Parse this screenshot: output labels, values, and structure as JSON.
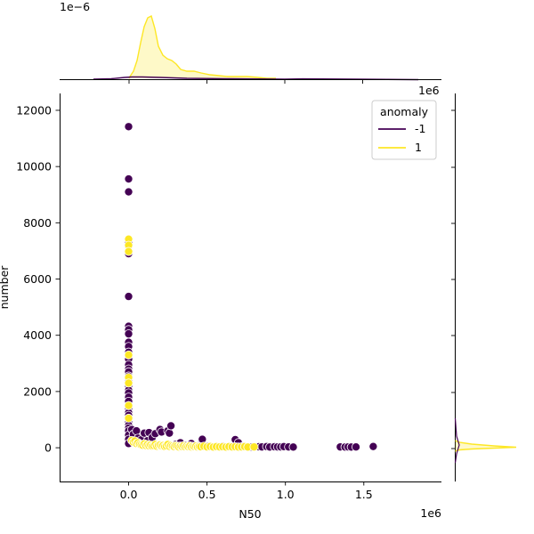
{
  "chart_data": {
    "type": "scatter",
    "title": "",
    "xlabel": "N50",
    "ylabel": "number",
    "x_offset_label": "1e6",
    "y_offset_label_top_marginal": "1e−6",
    "x_offset_label_top_right": "1e6",
    "xlim": [
      -0.44,
      1.995
    ],
    "ylim": [
      -1200,
      12600
    ],
    "x_scale_note": "x values in units of 1e6",
    "xticks": [
      0.0,
      0.5,
      1.0,
      1.5
    ],
    "xtick_labels": [
      "0.0",
      "0.5",
      "1.0",
      "1.5"
    ],
    "yticks": [
      0,
      2000,
      4000,
      6000,
      8000,
      10000,
      12000
    ],
    "ytick_labels": [
      "0",
      "2000",
      "4000",
      "6000",
      "8000",
      "10000",
      "12000"
    ],
    "legend": {
      "title": "anomaly",
      "placement": "top-right",
      "entries": [
        {
          "label": "-1",
          "color": "#440154"
        },
        {
          "label": "1",
          "color": "#fde725"
        }
      ]
    },
    "series": [
      {
        "name": "-1",
        "color": "#440154",
        "points": [
          [
            0.0,
            11420
          ],
          [
            0.0,
            9560
          ],
          [
            0.0,
            9100
          ],
          [
            0.0,
            7400
          ],
          [
            0.0,
            7300
          ],
          [
            0.0,
            7150
          ],
          [
            0.0,
            7000
          ],
          [
            0.0,
            6900
          ],
          [
            0.0,
            5380
          ],
          [
            0.0,
            4320
          ],
          [
            0.0,
            4200
          ],
          [
            0.0,
            4050
          ],
          [
            0.0,
            3750
          ],
          [
            0.0,
            3600
          ],
          [
            0.0,
            3400
          ],
          [
            0.0,
            3150
          ],
          [
            0.0,
            2950
          ],
          [
            0.0,
            2800
          ],
          [
            0.0,
            2700
          ],
          [
            0.0,
            2550
          ],
          [
            0.0,
            2400
          ],
          [
            0.0,
            2200
          ],
          [
            0.0,
            2050
          ],
          [
            0.0,
            1950
          ],
          [
            0.0,
            1800
          ],
          [
            0.0,
            1650
          ],
          [
            0.0,
            1500
          ],
          [
            0.0,
            1400
          ],
          [
            0.0,
            1250
          ],
          [
            0.0,
            1150
          ],
          [
            0.0,
            1000
          ],
          [
            0.0,
            900
          ],
          [
            0.0,
            800
          ],
          [
            0.0,
            700
          ],
          [
            0.0,
            600
          ],
          [
            0.0,
            450
          ],
          [
            0.0,
            300
          ],
          [
            0.0,
            150
          ],
          [
            0.02,
            650
          ],
          [
            0.03,
            480
          ],
          [
            0.05,
            600
          ],
          [
            0.06,
            340
          ],
          [
            0.08,
            280
          ],
          [
            0.1,
            520
          ],
          [
            0.12,
            250
          ],
          [
            0.13,
            540
          ],
          [
            0.15,
            360
          ],
          [
            0.17,
            500
          ],
          [
            0.2,
            650
          ],
          [
            0.21,
            560
          ],
          [
            0.25,
            600
          ],
          [
            0.26,
            520
          ],
          [
            0.27,
            780
          ],
          [
            0.3,
            120
          ],
          [
            0.33,
            180
          ],
          [
            0.36,
            90
          ],
          [
            0.4,
            150
          ],
          [
            0.45,
            80
          ],
          [
            0.47,
            300
          ],
          [
            0.5,
            60
          ],
          [
            0.55,
            40
          ],
          [
            0.6,
            55
          ],
          [
            0.65,
            45
          ],
          [
            0.68,
            290
          ],
          [
            0.7,
            180
          ],
          [
            0.73,
            50
          ],
          [
            0.78,
            30
          ],
          [
            0.83,
            35
          ],
          [
            0.85,
            30
          ],
          [
            0.88,
            40
          ],
          [
            0.9,
            25
          ],
          [
            0.93,
            35
          ],
          [
            0.95,
            30
          ],
          [
            0.97,
            28
          ],
          [
            0.99,
            40
          ],
          [
            1.02,
            30
          ],
          [
            1.05,
            25
          ],
          [
            1.35,
            30
          ],
          [
            1.38,
            25
          ],
          [
            1.4,
            30
          ],
          [
            1.42,
            25
          ],
          [
            1.45,
            28
          ],
          [
            1.56,
            45
          ]
        ]
      },
      {
        "name": "1",
        "color": "#fde725",
        "points": [
          [
            0.0,
            7420
          ],
          [
            0.0,
            7200
          ],
          [
            0.0,
            6980
          ],
          [
            0.0,
            3300
          ],
          [
            0.0,
            2500
          ],
          [
            0.0,
            2300
          ],
          [
            0.0,
            1500
          ],
          [
            0.0,
            1050
          ],
          [
            0.02,
            260
          ],
          [
            0.03,
            200
          ],
          [
            0.04,
            240
          ],
          [
            0.05,
            150
          ],
          [
            0.06,
            180
          ],
          [
            0.07,
            120
          ],
          [
            0.08,
            100
          ],
          [
            0.09,
            90
          ],
          [
            0.1,
            140
          ],
          [
            0.11,
            80
          ],
          [
            0.12,
            110
          ],
          [
            0.13,
            70
          ],
          [
            0.14,
            95
          ],
          [
            0.15,
            60
          ],
          [
            0.16,
            75
          ],
          [
            0.17,
            120
          ],
          [
            0.18,
            55
          ],
          [
            0.19,
            90
          ],
          [
            0.2,
            100
          ],
          [
            0.21,
            65
          ],
          [
            0.22,
            80
          ],
          [
            0.23,
            45
          ],
          [
            0.24,
            70
          ],
          [
            0.25,
            120
          ],
          [
            0.26,
            50
          ],
          [
            0.27,
            85
          ],
          [
            0.28,
            60
          ],
          [
            0.29,
            40
          ],
          [
            0.3,
            75
          ],
          [
            0.31,
            55
          ],
          [
            0.32,
            30
          ],
          [
            0.33,
            60
          ],
          [
            0.34,
            45
          ],
          [
            0.35,
            70
          ],
          [
            0.36,
            35
          ],
          [
            0.37,
            55
          ],
          [
            0.38,
            40
          ],
          [
            0.39,
            65
          ],
          [
            0.4,
            30
          ],
          [
            0.41,
            50
          ],
          [
            0.42,
            40
          ],
          [
            0.43,
            60
          ],
          [
            0.44,
            25
          ],
          [
            0.45,
            45
          ],
          [
            0.46,
            35
          ],
          [
            0.48,
            55
          ],
          [
            0.5,
            30
          ],
          [
            0.52,
            45
          ],
          [
            0.54,
            25
          ],
          [
            0.56,
            40
          ],
          [
            0.58,
            30
          ],
          [
            0.6,
            35
          ],
          [
            0.62,
            25
          ],
          [
            0.64,
            40
          ],
          [
            0.66,
            30
          ],
          [
            0.68,
            35
          ],
          [
            0.7,
            25
          ],
          [
            0.72,
            30
          ],
          [
            0.74,
            40
          ],
          [
            0.76,
            25
          ],
          [
            0.8,
            30
          ]
        ]
      }
    ]
  }
}
